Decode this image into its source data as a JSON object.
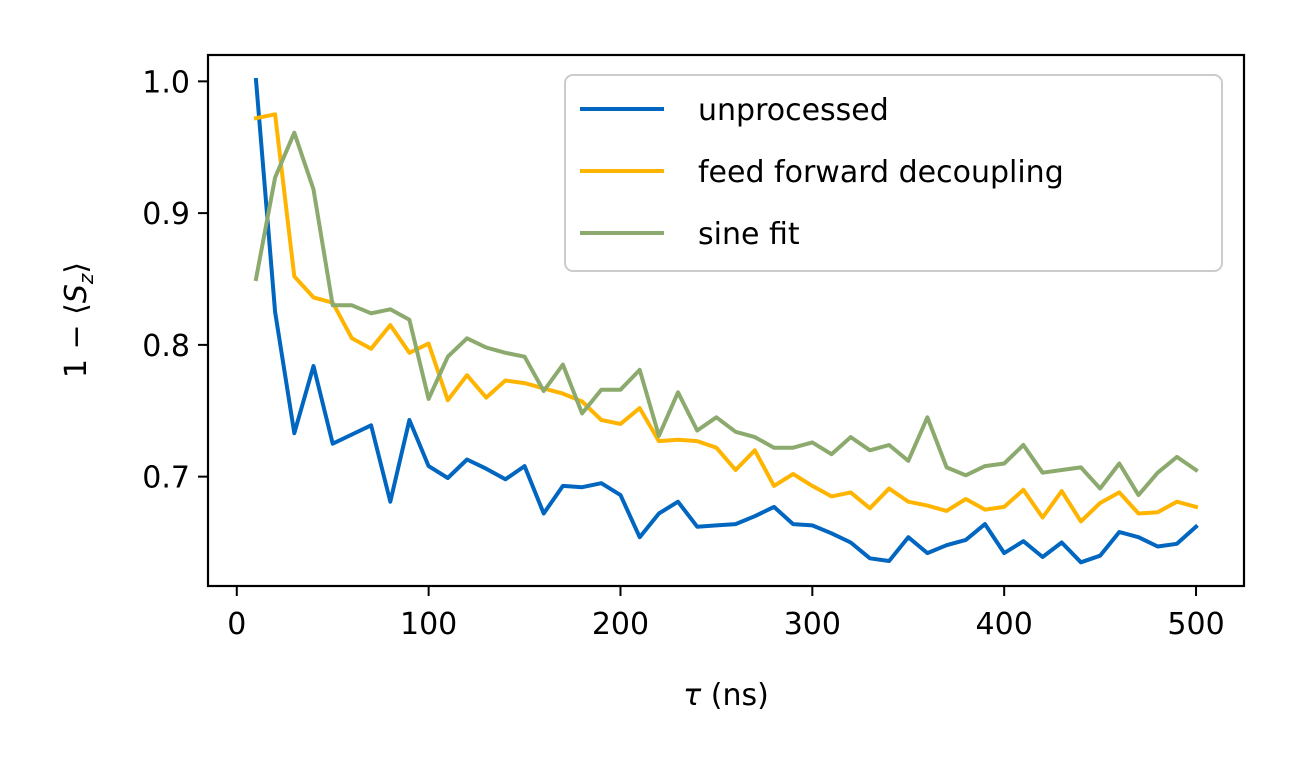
{
  "chart_data": {
    "type": "line",
    "title": "",
    "xlabel_sym": "τ",
    "xlabel_unit": " (ns)",
    "ylabel_prefix": "1 − ⟨",
    "ylabel_S": "S",
    "ylabel_sub": "z",
    "ylabel_suffix": "⟩",
    "xlim": [
      -15,
      525
    ],
    "ylim": [
      0.617,
      1.02
    ],
    "xticks": [
      0,
      100,
      200,
      300,
      400,
      500
    ],
    "xtick_labels": [
      "0",
      "100",
      "200",
      "300",
      "400",
      "500"
    ],
    "yticks": [
      0.7,
      0.8,
      0.9,
      1.0
    ],
    "ytick_labels": [
      "0.7",
      "0.8",
      "0.9",
      "1.0"
    ],
    "grid": false,
    "legend_position": "top-right",
    "x": [
      10,
      20,
      30,
      40,
      50,
      60,
      70,
      80,
      90,
      100,
      110,
      120,
      130,
      140,
      150,
      160,
      170,
      180,
      190,
      200,
      210,
      220,
      230,
      240,
      250,
      260,
      270,
      280,
      290,
      300,
      310,
      320,
      330,
      340,
      350,
      360,
      370,
      380,
      390,
      400,
      410,
      420,
      430,
      440,
      450,
      460,
      470,
      480,
      490,
      500
    ],
    "series": [
      {
        "name": "unprocessed",
        "color": "#0066c0",
        "values": [
          1.001,
          0.825,
          0.733,
          0.784,
          0.725,
          0.732,
          0.739,
          0.681,
          0.743,
          0.708,
          0.699,
          0.713,
          0.706,
          0.698,
          0.708,
          0.672,
          0.693,
          0.692,
          0.695,
          0.686,
          0.654,
          0.672,
          0.681,
          0.662,
          0.663,
          0.664,
          0.67,
          0.677,
          0.664,
          0.663,
          0.657,
          0.65,
          0.638,
          0.636,
          0.654,
          0.642,
          0.648,
          0.652,
          0.664,
          0.642,
          0.651,
          0.639,
          0.65,
          0.635,
          0.64,
          0.658,
          0.654,
          0.647,
          0.649,
          0.662
        ]
      },
      {
        "name": "feed forward decoupling",
        "color": "#ffb400",
        "values": [
          0.972,
          0.975,
          0.852,
          0.836,
          0.832,
          0.805,
          0.797,
          0.815,
          0.794,
          0.801,
          0.758,
          0.777,
          0.76,
          0.773,
          0.771,
          0.767,
          0.763,
          0.757,
          0.743,
          0.74,
          0.752,
          0.727,
          0.728,
          0.727,
          0.722,
          0.705,
          0.72,
          0.693,
          0.702,
          0.693,
          0.685,
          0.688,
          0.676,
          0.691,
          0.681,
          0.678,
          0.674,
          0.683,
          0.675,
          0.677,
          0.69,
          0.669,
          0.689,
          0.666,
          0.68,
          0.688,
          0.672,
          0.673,
          0.681,
          0.677
        ]
      },
      {
        "name": "sine fit",
        "color": "#8caa6e",
        "values": [
          0.85,
          0.927,
          0.961,
          0.918,
          0.83,
          0.83,
          0.824,
          0.827,
          0.819,
          0.759,
          0.791,
          0.805,
          0.798,
          0.794,
          0.791,
          0.765,
          0.785,
          0.748,
          0.766,
          0.766,
          0.781,
          0.731,
          0.764,
          0.735,
          0.745,
          0.734,
          0.73,
          0.722,
          0.722,
          0.726,
          0.717,
          0.73,
          0.72,
          0.724,
          0.712,
          0.745,
          0.707,
          0.701,
          0.708,
          0.71,
          0.724,
          0.703,
          0.705,
          0.707,
          0.691,
          0.71,
          0.686,
          0.703,
          0.715,
          0.705
        ]
      }
    ]
  }
}
